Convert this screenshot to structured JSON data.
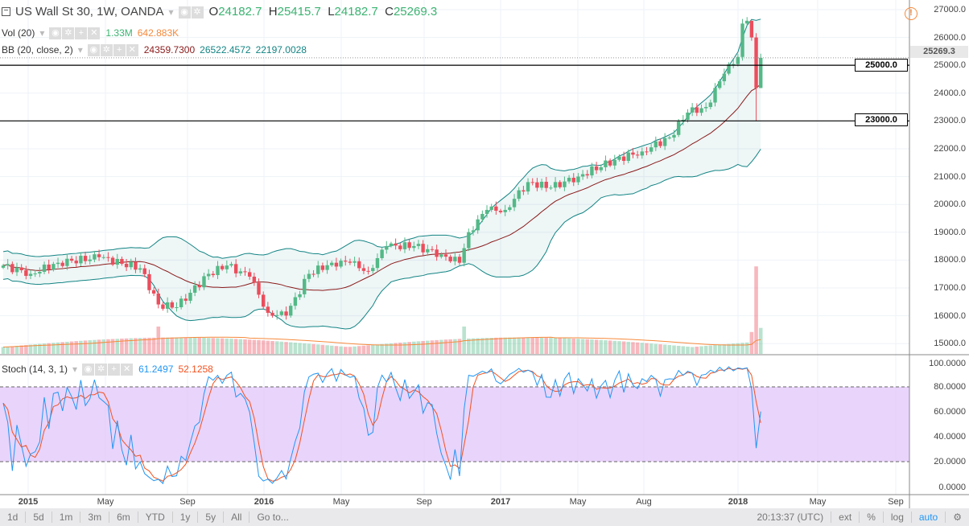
{
  "header": {
    "symbol": "US Wall St 30, 1W, OANDA",
    "o_label": "O",
    "o": "24182.7",
    "h_label": "H",
    "h": "25415.7",
    "l_label": "L",
    "l": "24182.7",
    "c_label": "C",
    "c": "25269.3"
  },
  "vol": {
    "label": "Vol (20)",
    "v1": "1.33M",
    "v2": "642.883K"
  },
  "bb": {
    "label": "BB (20, close, 2)",
    "basis": "24359.7300",
    "upper": "26522.4572",
    "lower": "22197.0028"
  },
  "stoch": {
    "label": "Stoch (14, 3, 1)",
    "k": "61.2497",
    "d": "52.1258"
  },
  "price_axis": [
    "27000.0",
    "26000.0",
    "25000.0",
    "24000.0",
    "23000.0",
    "22000.0",
    "21000.0",
    "20000.0",
    "19000.0",
    "18000.0",
    "17000.0",
    "16000.0",
    "15000.0"
  ],
  "stoch_axis": [
    "100.0000",
    "80.0000",
    "60.0000",
    "40.0000",
    "20.0000",
    "0.0000"
  ],
  "price_boxes": {
    "last": "25269.3",
    "line1": "25000.0",
    "line2": "23000.0"
  },
  "time_axis": [
    "2015",
    "May",
    "Sep",
    "2016",
    "May",
    "Sep",
    "2017",
    "May",
    "Aug",
    "2018",
    "May",
    "Sep"
  ],
  "toolbar": {
    "ranges": [
      "1d",
      "5d",
      "1m",
      "3m",
      "6m",
      "YTD",
      "1y",
      "5y",
      "All",
      "Go to..."
    ],
    "clock": "20:13:37 (UTC)",
    "ext": "ext",
    "pct": "%",
    "log": "log",
    "auto": "auto"
  },
  "colors": {
    "up": "#53b987",
    "down": "#eb4d5c",
    "bb_basis": "#8b1a1a",
    "bb_band": "#138484",
    "k": "#2196f3",
    "d": "#f4511e",
    "stoch_bg": "#e1c6fa"
  },
  "chart_data": {
    "type": "candlestick",
    "interval": "1W",
    "anchors_week_close": [
      [
        0,
        17800
      ],
      [
        6,
        17500
      ],
      [
        12,
        17900
      ],
      [
        21,
        18100
      ],
      [
        30,
        17700
      ],
      [
        34,
        16400
      ],
      [
        38,
        16300
      ],
      [
        45,
        17500
      ],
      [
        49,
        17800
      ],
      [
        54,
        17400
      ],
      [
        58,
        16100
      ],
      [
        62,
        16000
      ],
      [
        67,
        17500
      ],
      [
        72,
        17900
      ],
      [
        76,
        17900
      ],
      [
        80,
        17600
      ],
      [
        84,
        18500
      ],
      [
        90,
        18500
      ],
      [
        96,
        18200
      ],
      [
        100,
        17900
      ],
      [
        102,
        19000
      ],
      [
        106,
        19800
      ],
      [
        110,
        19800
      ],
      [
        115,
        20800
      ],
      [
        120,
        20600
      ],
      [
        126,
        21000
      ],
      [
        134,
        21600
      ],
      [
        140,
        21900
      ],
      [
        146,
        22400
      ],
      [
        150,
        23300
      ],
      [
        154,
        23500
      ],
      [
        158,
        24700
      ],
      [
        161,
        25300
      ],
      [
        162,
        26500
      ],
      [
        163,
        26600
      ],
      [
        164,
        26000
      ],
      [
        165,
        24182.7
      ],
      [
        166,
        25269.3
      ]
    ],
    "horizontal_lines": [
      25000,
      23000
    ],
    "ylim": [
      14700,
      27200
    ]
  }
}
